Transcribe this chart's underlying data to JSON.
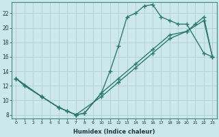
{
  "background_color": "#cce8ec",
  "line_color": "#2a7a6a",
  "grid_color": "#b0d0d4",
  "xlabel": "Humidex (Indice chaleur)",
  "ylim": [
    7.5,
    23.5
  ],
  "xlim": [
    -0.5,
    23.5
  ],
  "yticks": [
    8,
    10,
    12,
    14,
    16,
    18,
    20,
    22
  ],
  "xticks": [
    0,
    1,
    2,
    3,
    4,
    5,
    6,
    7,
    8,
    9,
    10,
    11,
    12,
    13,
    14,
    15,
    16,
    17,
    18,
    19,
    20,
    21,
    22,
    23
  ],
  "line1_x": [
    0,
    1,
    3,
    5,
    6,
    7,
    8,
    10,
    11,
    12,
    13,
    14,
    15,
    16,
    17,
    18,
    19,
    20,
    22,
    23
  ],
  "line1_y": [
    13,
    12,
    10.5,
    9,
    8.5,
    8,
    8.2,
    11,
    14,
    17.5,
    21.5,
    22,
    23.0,
    23.2,
    21.5,
    21.0,
    20.5,
    20.5,
    16.5,
    16
  ],
  "line2_x": [
    0,
    1,
    3,
    5,
    6,
    7,
    8,
    10,
    12,
    14,
    16,
    18,
    20,
    21,
    22,
    23
  ],
  "line2_y": [
    13,
    12,
    10.5,
    9,
    8.5,
    8,
    8.2,
    11,
    13,
    15,
    17,
    19,
    19.5,
    20.5,
    21.5,
    16
  ],
  "line3_x": [
    0,
    3,
    5,
    7,
    10,
    12,
    14,
    16,
    18,
    20,
    22,
    23
  ],
  "line3_y": [
    13,
    10.5,
    9,
    8,
    10.5,
    12.5,
    14.5,
    16.5,
    18.5,
    19.5,
    21,
    16
  ]
}
